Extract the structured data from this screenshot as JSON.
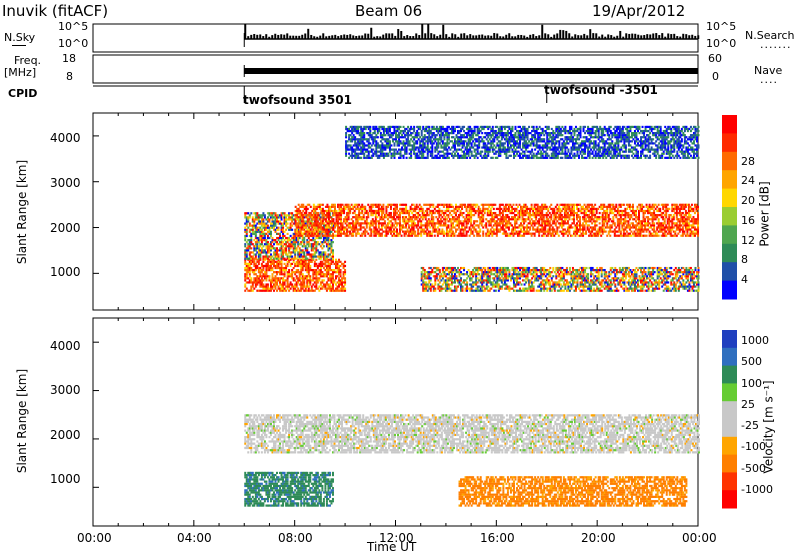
{
  "header": {
    "station": "Inuvik (fitACF)",
    "beam": "Beam 06",
    "date": "19/Apr/2012"
  },
  "strip_labels": {
    "nsky": "N.Sky",
    "nsky_top": "10^5",
    "nsky_bottom": "10^0",
    "nsearch": "N.Search",
    "freq": "Freq.",
    "freq_unit": "[MHz]",
    "freq_top": "18",
    "freq_bottom": "8",
    "nave": "Nave",
    "nave_top": "60",
    "nave_bottom": "0",
    "cpid": "CPID",
    "cpid_1": "twofsound 3501",
    "cpid_2": "twofsound -3501"
  },
  "colors": {
    "power_scale": [
      "#0000ff",
      "#1f4fa8",
      "#2e8b57",
      "#4fa64f",
      "#9acd32",
      "#ffd700",
      "#ffa500",
      "#ff6a00",
      "#ff2a00",
      "#ff0000"
    ],
    "velocity_scale": [
      "#ff0000",
      "#ff3300",
      "#ff7f00",
      "#ffa500",
      "#c8c8c8",
      "#c8c8c8",
      "#66cc33",
      "#2e8b57",
      "#2f6fbf",
      "#1f3fbf"
    ]
  },
  "chart_data": [
    {
      "type": "heatmap",
      "title": "Power",
      "ylabel": "Slant Range [km]",
      "y_ticks": [
        "1000",
        "2000",
        "3000",
        "4000"
      ],
      "ylim": [
        200,
        4500
      ],
      "xlim": [
        "00:00",
        "00:00"
      ],
      "colorbar_label": "Power [dB]",
      "colorbar_ticks": [
        "4",
        "8",
        "12",
        "16",
        "20",
        "24",
        "28"
      ],
      "data_start": "06:00",
      "bands": [
        {
          "t0": 6.0,
          "t1": 10.0,
          "r0": 600,
          "r1": 1300,
          "level": "high"
        },
        {
          "t0": 6.0,
          "t1": 9.5,
          "r0": 1300,
          "r1": 2300,
          "level": "mixed"
        },
        {
          "t0": 8.0,
          "t1": 24.0,
          "r0": 1800,
          "r1": 2500,
          "level": "high"
        },
        {
          "t0": 13.0,
          "t1": 24.0,
          "r0": 600,
          "r1": 1100,
          "level": "mixed"
        },
        {
          "t0": 10.0,
          "t1": 24.0,
          "r0": 3500,
          "r1": 4200,
          "level": "low"
        }
      ]
    },
    {
      "type": "heatmap",
      "title": "Velocity",
      "ylabel": "Slant Range [km]",
      "y_ticks": [
        "1000",
        "2000",
        "3000",
        "4000"
      ],
      "ylim": [
        200,
        4500
      ],
      "xlabel": "Time UT",
      "x_ticks": [
        "00:00",
        "04:00",
        "08:00",
        "12:00",
        "16:00",
        "20:00",
        "00:00"
      ],
      "colorbar_label": "Velocity [m s⁻¹]",
      "colorbar_ticks": [
        "1000",
        "500",
        "100",
        "25",
        "-25",
        "-100",
        "-500",
        "-1000"
      ],
      "bands": [
        {
          "t0": 6.0,
          "t1": 9.5,
          "r0": 600,
          "r1": 1300,
          "level": "positive"
        },
        {
          "t0": 6.0,
          "t1": 24.0,
          "r0": 1700,
          "r1": 2500,
          "level": "neutral"
        },
        {
          "t0": 14.5,
          "t1": 23.5,
          "r0": 600,
          "r1": 1200,
          "level": "negative"
        }
      ]
    }
  ]
}
